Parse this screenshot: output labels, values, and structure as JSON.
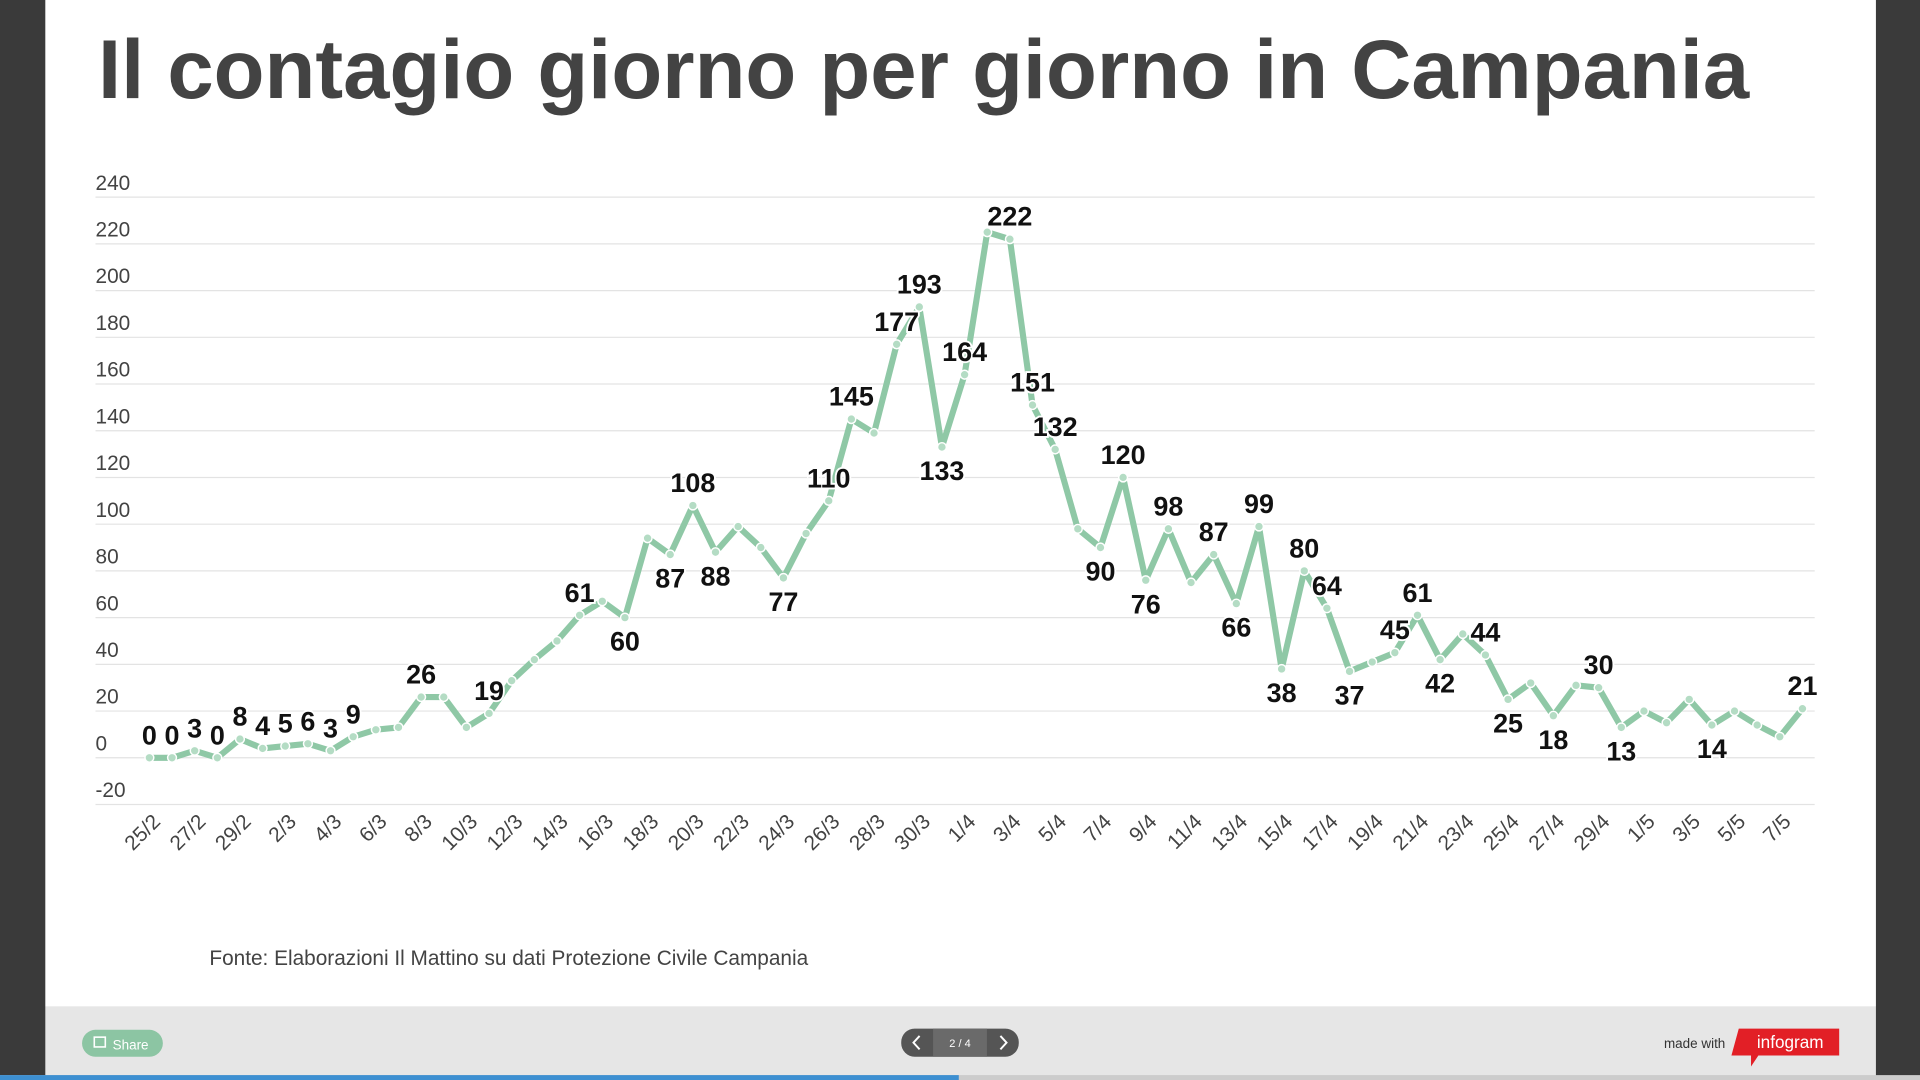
{
  "chart_data": {
    "type": "line",
    "title": "Il contagio giorno per giorno in Campania",
    "source": "Fonte: Elaborazioni Il Mattino su dati Protezione Civile Campania",
    "categories": [
      "25/2",
      null,
      "27/2",
      null,
      "29/2",
      null,
      "2/3",
      null,
      "4/3",
      null,
      "6/3",
      null,
      "8/3",
      null,
      "10/3",
      null,
      "12/3",
      null,
      "14/3",
      null,
      "16/3",
      null,
      "18/3",
      null,
      "20/3",
      null,
      "22/3",
      null,
      "24/3",
      null,
      "26/3",
      null,
      "28/3",
      null,
      "30/3",
      null,
      "1/4",
      null,
      "3/4",
      null,
      "5/4",
      null,
      "7/4",
      null,
      "9/4",
      null,
      "11/4",
      null,
      "13/4",
      null,
      "15/4",
      null,
      "17/4",
      null,
      "19/4",
      null,
      "21/4",
      null,
      "23/4",
      null,
      "25/4",
      null,
      "27/4",
      null,
      "29/4",
      null,
      "1/5",
      null,
      "3/5",
      null,
      "5/5",
      null,
      "7/5",
      null
    ],
    "series": [
      {
        "name": null,
        "color": "#8fc8a6",
        "values": [
          0,
          0,
          3,
          0,
          8,
          4,
          5,
          6,
          3,
          9,
          12,
          13,
          26,
          26,
          13,
          19,
          33,
          42,
          50,
          61,
          67,
          60,
          94,
          87,
          108,
          88,
          99,
          90,
          77,
          96,
          110,
          145,
          139,
          177,
          193,
          133,
          164,
          225,
          222,
          151,
          132,
          98,
          90,
          120,
          76,
          98,
          75,
          87,
          66,
          99,
          38,
          80,
          64,
          37,
          41,
          45,
          61,
          42,
          53,
          44,
          25,
          32,
          18,
          31,
          30,
          13,
          20,
          15,
          25,
          14,
          20,
          14,
          9,
          21
        ],
        "value_labels": [
          "0",
          "0",
          "3",
          "0",
          "8",
          "4",
          "5",
          "6",
          "3",
          "9",
          null,
          null,
          "26",
          null,
          null,
          "19",
          null,
          null,
          null,
          "61",
          null,
          "60",
          null,
          "87",
          "108",
          "88",
          null,
          null,
          "77",
          null,
          "110",
          "145",
          null,
          "177",
          "193",
          "133",
          "164",
          null,
          "222",
          "151",
          "132",
          null,
          "90",
          "120",
          "76",
          "98",
          null,
          "87",
          "66",
          "99",
          "38",
          "80",
          "64",
          "37",
          null,
          "45",
          "61",
          "42",
          null,
          "44",
          "25",
          null,
          "18",
          null,
          "30",
          "13",
          null,
          null,
          null,
          "14",
          null,
          null,
          null,
          "21"
        ]
      }
    ],
    "ylim": [
      -20,
      240
    ],
    "yticks": [
      -20,
      0,
      20,
      40,
      60,
      80,
      100,
      120,
      140,
      160,
      180,
      200,
      220,
      240
    ],
    "grid": true
  },
  "footer": {
    "share": "Share",
    "pager": "2 / 4",
    "made_with": "made with",
    "brand": "infogram"
  }
}
